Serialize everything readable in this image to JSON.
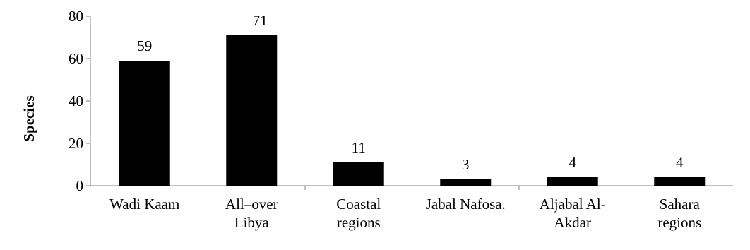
{
  "chart_data": {
    "type": "bar",
    "title": "",
    "xlabel": "",
    "ylabel": "Species",
    "ylim": [
      0,
      80
    ],
    "yticks": [
      0,
      20,
      40,
      60,
      80
    ],
    "grid": false,
    "legend": "none",
    "bar_color": "#000000",
    "categories": [
      [
        "Wadi Kaam"
      ],
      [
        "All–over",
        "Libya"
      ],
      [
        "Coastal",
        "regions"
      ],
      [
        "Jabal Nafosa."
      ],
      [
        "Aljabal Al-",
        "Akdar"
      ],
      [
        "Sahara",
        "regions"
      ]
    ],
    "values": [
      59,
      71,
      11,
      3,
      4,
      4
    ]
  }
}
